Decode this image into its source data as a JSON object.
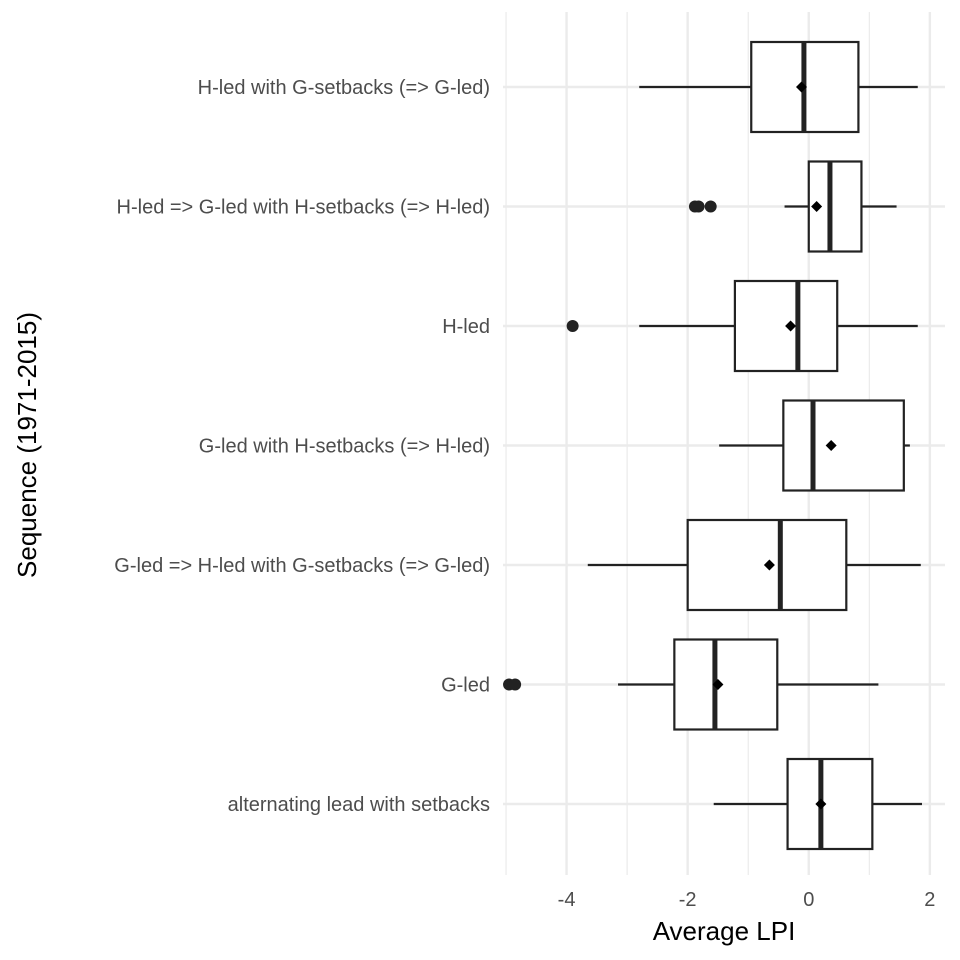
{
  "chart_data": {
    "type": "boxplot",
    "orientation": "horizontal",
    "title": "",
    "xlabel": "Average LPI",
    "ylabel": "Sequence (1971-2015)",
    "xlim": [
      -5.05,
      2.25
    ],
    "xticks": [
      -4,
      -2,
      0,
      2
    ],
    "xtick_labels": [
      "-4",
      "-2",
      "0",
      "2"
    ],
    "grid": true,
    "legend": "none",
    "colors": {
      "grid": "#ebebeb",
      "box": "#222222",
      "fill": "#ffffff",
      "text": "#4d4d4d"
    },
    "categories": [
      "H-led with G-setbacks (=> G-led)",
      "H-led => G-led with H-setbacks (=> H-led)",
      "H-led",
      "G-led with H-setbacks (=> H-led)",
      "G-led => H-led with G-setbacks (=> G-led)",
      "G-led",
      "alternating lead with setbacks"
    ],
    "boxes": [
      {
        "whisker_low": -2.8,
        "q1": -0.95,
        "median": -0.08,
        "q3": 0.82,
        "whisker_high": 1.8,
        "mean": -0.12,
        "outliers": []
      },
      {
        "whisker_low": -0.4,
        "q1": 0.0,
        "median": 0.35,
        "q3": 0.87,
        "whisker_high": 1.45,
        "mean": 0.13,
        "outliers": [
          -1.88,
          -1.82,
          -1.62
        ]
      },
      {
        "whisker_low": -2.8,
        "q1": -1.22,
        "median": -0.18,
        "q3": 0.47,
        "whisker_high": 1.8,
        "mean": -0.3,
        "outliers": [
          -3.9
        ]
      },
      {
        "whisker_low": -1.48,
        "q1": -0.42,
        "median": 0.07,
        "q3": 1.57,
        "whisker_high": 1.67,
        "mean": 0.37,
        "outliers": []
      },
      {
        "whisker_low": -3.65,
        "q1": -2.0,
        "median": -0.47,
        "q3": 0.62,
        "whisker_high": 1.85,
        "mean": -0.65,
        "outliers": []
      },
      {
        "whisker_low": -3.15,
        "q1": -2.22,
        "median": -1.55,
        "q3": -0.52,
        "whisker_high": 1.15,
        "mean": -1.5,
        "outliers": [
          -4.95,
          -4.85
        ]
      },
      {
        "whisker_low": -1.57,
        "q1": -0.35,
        "median": 0.2,
        "q3": 1.05,
        "whisker_high": 1.87,
        "mean": 0.2,
        "outliers": []
      }
    ]
  }
}
